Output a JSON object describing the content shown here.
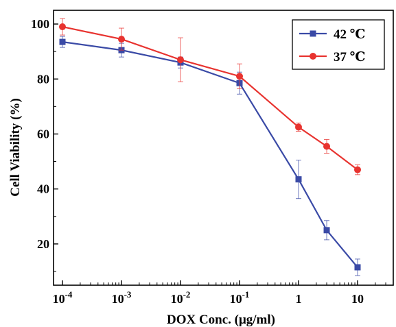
{
  "chart_data": {
    "type": "line",
    "xscale": "log",
    "x": [
      0.0001,
      0.001,
      0.01,
      0.1,
      1,
      3,
      10
    ],
    "x_tick_labels": [
      {
        "base": "10",
        "exp": "-4"
      },
      {
        "base": "10",
        "exp": "-3"
      },
      {
        "base": "10",
        "exp": "-2"
      },
      {
        "base": "10",
        "exp": "-1"
      },
      {
        "base": "1",
        "exp": ""
      },
      {
        "base": "10",
        "exp": ""
      }
    ],
    "x_tick_values": [
      0.0001,
      0.001,
      0.01,
      0.1,
      1,
      10
    ],
    "y_ticks": [
      "20",
      "40",
      "60",
      "80",
      "100"
    ],
    "y_tick_values": [
      20,
      40,
      60,
      80,
      100
    ],
    "xlabel": "DOX Conc. (μg/ml)",
    "ylabel": "Cell Viability (%)",
    "ylim": [
      5,
      105
    ],
    "grid": false,
    "legend_position": "top-right",
    "series": [
      {
        "name": "42 ℃",
        "color": "#3a4aa6",
        "marker": "square",
        "values": [
          93.5,
          90.5,
          86,
          78.5,
          43.5,
          25,
          11.5
        ],
        "errors": [
          2,
          2.5,
          2,
          4,
          7,
          3.5,
          3
        ]
      },
      {
        "name": "37 ℃",
        "color": "#e8332f",
        "marker": "circle",
        "values": [
          99,
          94.5,
          87,
          81,
          62.5,
          55.5,
          47
        ],
        "errors": [
          3,
          4,
          8,
          4.5,
          1.5,
          2.5,
          1.8
        ]
      }
    ]
  }
}
